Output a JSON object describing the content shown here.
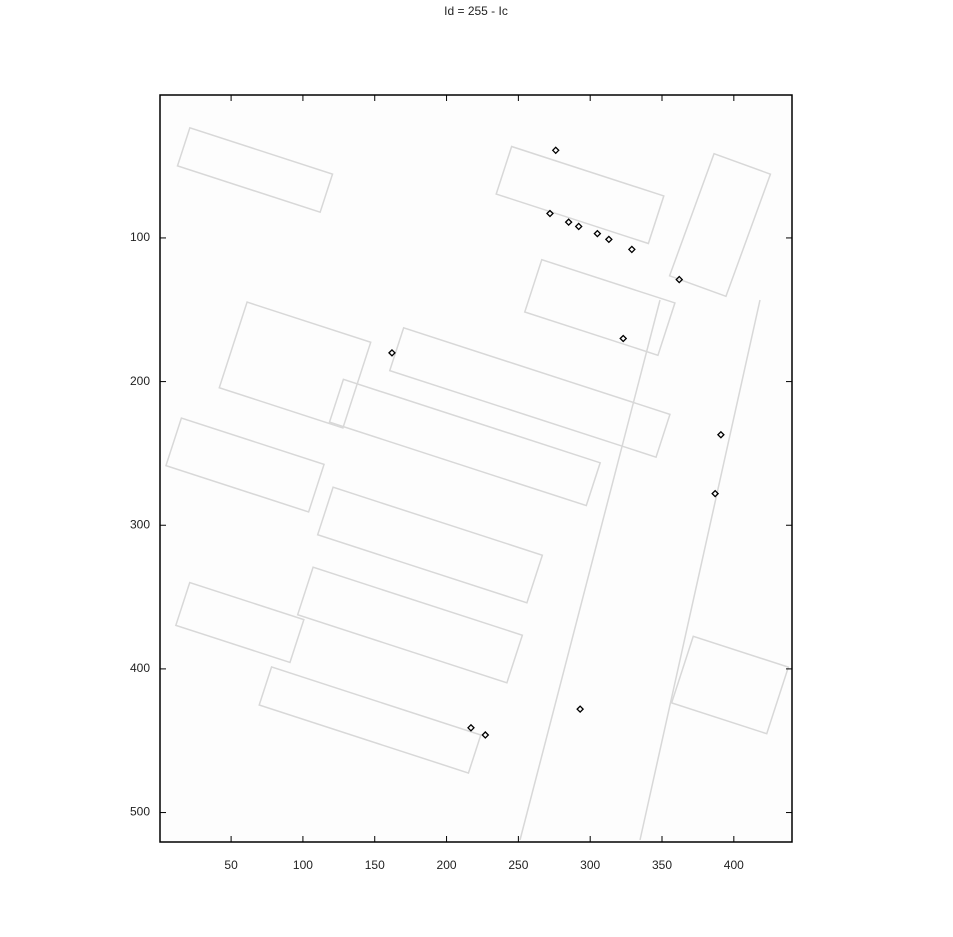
{
  "chart_data": {
    "type": "image",
    "title": "Id = 255 - Ic",
    "xlim": [
      0.5,
      440.5
    ],
    "ylim": [
      520.5,
      0.5
    ],
    "y_reversed": true,
    "xticks": [
      50,
      100,
      150,
      200,
      250,
      300,
      350,
      400
    ],
    "yticks": [
      100,
      200,
      300,
      400,
      500
    ],
    "points": {
      "color": "#000000",
      "x": [
        276,
        272,
        285,
        292,
        305,
        313,
        329,
        362,
        323,
        162,
        391,
        387,
        293,
        217,
        227
      ],
      "y": [
        39,
        83,
        89,
        92,
        97,
        101,
        108,
        129,
        170,
        180,
        237,
        278,
        428,
        441,
        446
      ]
    }
  }
}
